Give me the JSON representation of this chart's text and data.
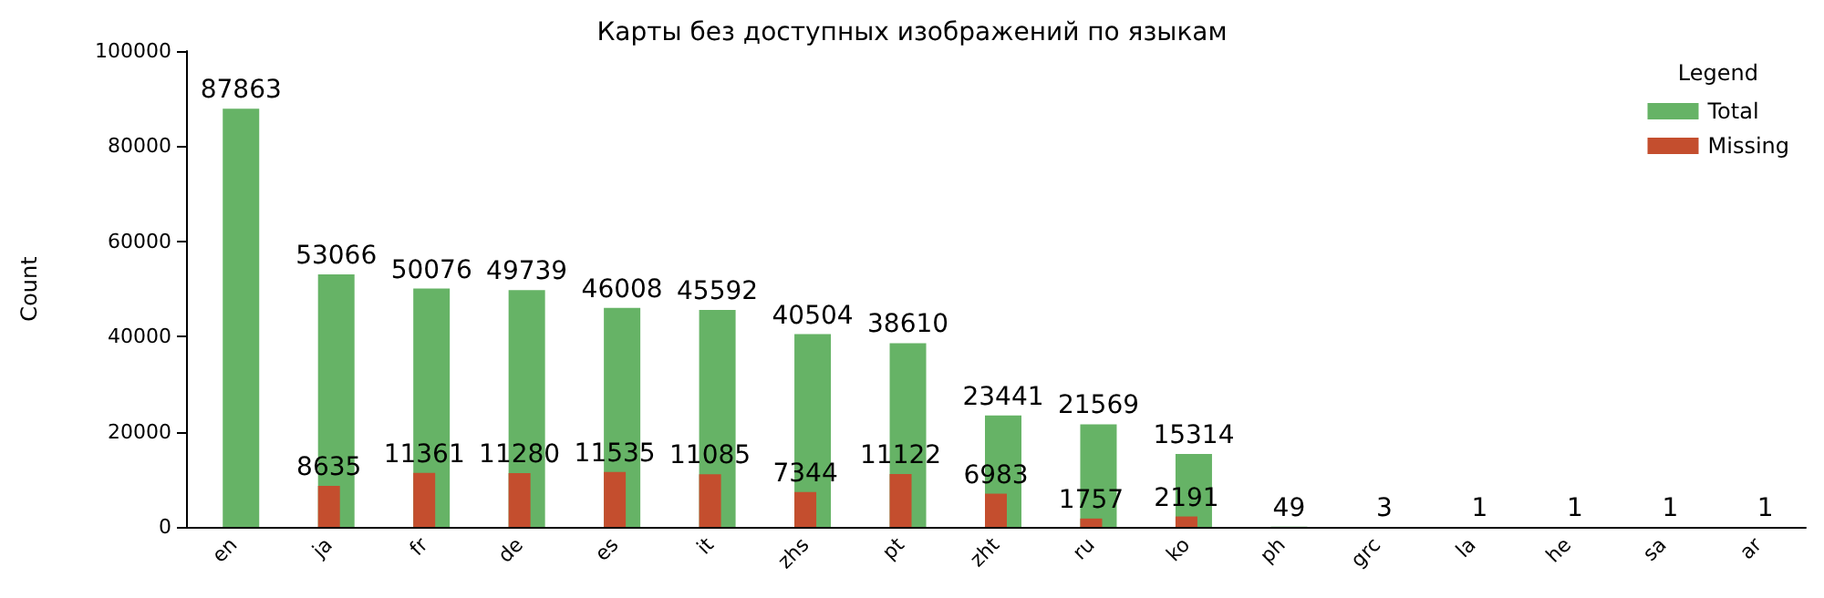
{
  "chart_data": {
    "type": "bar",
    "title": "Карты без доступных изображений по языкам",
    "ylabel": "Count",
    "legend_title": "Legend",
    "categories": [
      "en",
      "ja",
      "fr",
      "de",
      "es",
      "it",
      "zhs",
      "pt",
      "zht",
      "ru",
      "ko",
      "ph",
      "grc",
      "la",
      "he",
      "sa",
      "ar"
    ],
    "series": [
      {
        "name": "Total",
        "color": "#66b366",
        "values": [
          87863,
          53066,
          50076,
          49739,
          46008,
          45592,
          40504,
          38610,
          23441,
          21569,
          15314,
          49,
          3,
          1,
          1,
          1,
          1
        ]
      },
      {
        "name": "Missing",
        "color": "#c44e2e",
        "values": [
          null,
          8635,
          11361,
          11280,
          11535,
          11085,
          7344,
          11122,
          6983,
          1757,
          2191,
          null,
          null,
          null,
          null,
          null,
          null
        ]
      }
    ],
    "ylim": [
      0,
      100000
    ],
    "yticks": [
      0,
      20000,
      40000,
      60000,
      80000,
      100000
    ],
    "data_labels": true,
    "legend": "top right",
    "grid": false
  }
}
